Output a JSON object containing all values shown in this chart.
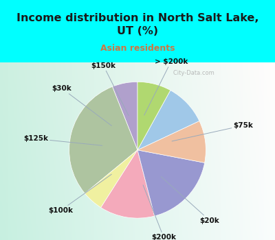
{
  "title": "Income distribution in North Salt Lake,\nUT (%)",
  "subtitle": "Asian residents",
  "title_color": "#1a1a1a",
  "subtitle_color": "#cc7744",
  "bg_cyan": "#00ffff",
  "chart_bg_left": "#b8e8d0",
  "chart_bg_right": "#e8f4f0",
  "labels": [
    "> $200k",
    "$75k",
    "$20k",
    "$200k",
    "$100k",
    "$125k",
    "$30k",
    "$150k"
  ],
  "sizes": [
    6,
    30,
    5,
    13,
    18,
    10,
    10,
    8
  ],
  "colors": [
    "#b0a0cc",
    "#aec4a0",
    "#f0f0a0",
    "#f4aabb",
    "#9898d0",
    "#f0c0a0",
    "#a0c8e8",
    "#b0d870"
  ],
  "startangle": 90,
  "watermark": "   City-Data.com"
}
